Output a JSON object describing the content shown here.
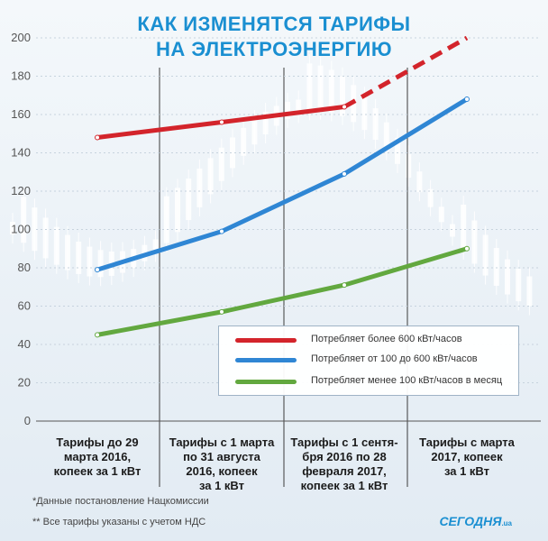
{
  "title_line1": "КАК ИЗМЕНЯТСЯ ТАРИФЫ",
  "title_line2": "НА ЭЛЕКТРОЭНЕРГИЮ",
  "chart_data": {
    "type": "line",
    "categories": [
      "Тарифы до 29 марта 2016, копеек за 1 кВт",
      "Тарифы с 1 марта по 31 августа 2016, копеек за 1 кВт",
      "Тарифы с 1 сентя-бря 2016 по 28 февраля 2017, копеек за 1 кВт",
      "Тарифы с марта 2017, копеек за 1 кВт"
    ],
    "categories_lines": [
      [
        "Тарифы до 29",
        "марта 2016,",
        "копеек за 1 кВт"
      ],
      [
        "Тарифы с 1 марта",
        "по 31 августа",
        "2016, копеек",
        "за 1 кВт"
      ],
      [
        "Тарифы с 1 сентя-",
        "бря 2016 по 28",
        "февраля 2017,",
        "копеек за 1 кВт"
      ],
      [
        "Тарифы с марта",
        "2017, копеек",
        "за 1 кВт"
      ]
    ],
    "yticks": [
      0,
      20,
      40,
      60,
      80,
      100,
      120,
      140,
      160,
      180,
      200
    ],
    "ylim": [
      0,
      200
    ],
    "grid": true,
    "legend_position": "bottom-right",
    "series": [
      {
        "name": "Потребляет более 600 кВт/часов",
        "color": "#d3242b",
        "values": [
          148,
          156,
          164,
          200
        ],
        "dashed_from": 2
      },
      {
        "name": "Потребляет от 100 до 600 кВт/часов",
        "color": "#2f86d4",
        "values": [
          79,
          99,
          129,
          168
        ]
      },
      {
        "name": "Потребляет менее 100 кВт/часов в месяц",
        "color": "#62a83f",
        "values": [
          45,
          57,
          71,
          90
        ]
      }
    ]
  },
  "footnote1": "*Данные постановление Нацкомиссии",
  "footnote2": "** Все тарифы указаны с учетом НДС",
  "brand": "СЕГОДНЯ",
  "brand_suffix": ".ua"
}
